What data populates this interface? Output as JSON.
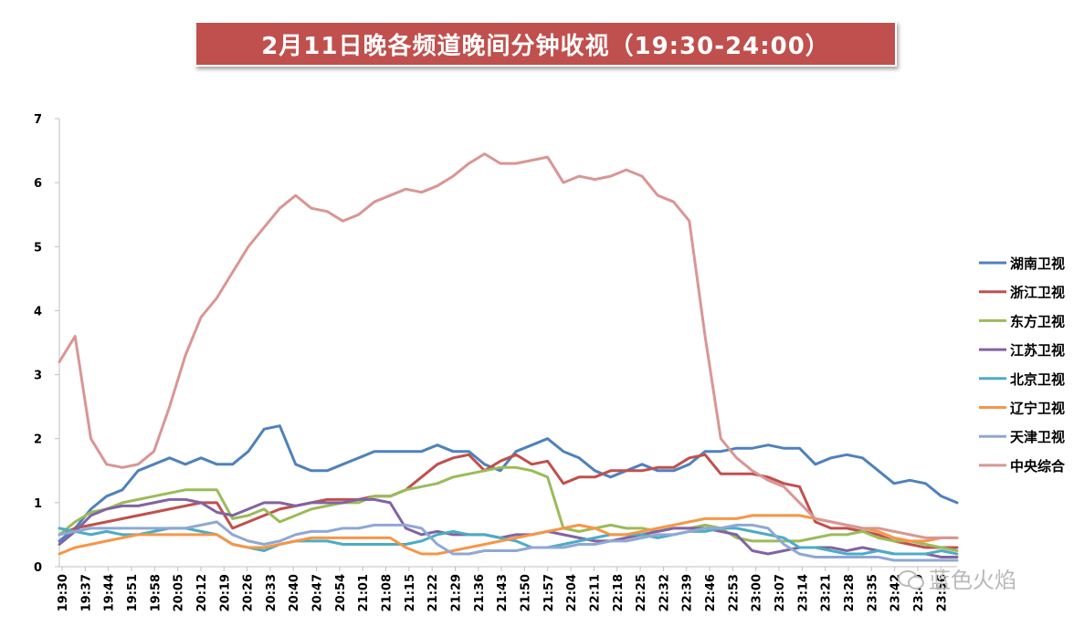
{
  "chart_data": {
    "type": "line",
    "title": "2月11日晚各频道晚间分钟收视（19:30-24:00）",
    "xlabel": "",
    "ylabel": "",
    "ylim": [
      0,
      7
    ],
    "yticks": [
      "0",
      "1",
      "2",
      "3",
      "4",
      "5",
      "6",
      "7"
    ],
    "x_tick_labels": [
      "19:30",
      "19:37",
      "19:44",
      "19:51",
      "19:58",
      "20:05",
      "20:12",
      "20:19",
      "20:26",
      "20:33",
      "20:40",
      "20:47",
      "20:54",
      "21:01",
      "21:08",
      "21:15",
      "21:22",
      "21:29",
      "21:36",
      "21:43",
      "21:50",
      "21:57",
      "22:04",
      "22:11",
      "22:18",
      "22:25",
      "22:32",
      "22:39",
      "22:46",
      "22:53",
      "23:00",
      "23:07",
      "23:14",
      "23:21",
      "23:28",
      "23:35",
      "23:42",
      "23:49",
      "23:56"
    ],
    "legend_position": "right",
    "series": [
      {
        "name": "湖南卫视",
        "color": "#4f81bd",
        "values": [
          0.4,
          0.6,
          0.9,
          1.1,
          1.2,
          1.5,
          1.6,
          1.7,
          1.6,
          1.7,
          1.6,
          1.6,
          1.8,
          2.15,
          2.2,
          1.6,
          1.5,
          1.5,
          1.6,
          1.7,
          1.8,
          1.8,
          1.8,
          1.8,
          1.9,
          1.8,
          1.8,
          1.6,
          1.5,
          1.8,
          1.9,
          2.0,
          1.8,
          1.7,
          1.5,
          1.4,
          1.5,
          1.6,
          1.5,
          1.5,
          1.6,
          1.8,
          1.8,
          1.85,
          1.85,
          1.9,
          1.85,
          1.85,
          1.6,
          1.7,
          1.75,
          1.7,
          1.5,
          1.3,
          1.35,
          1.3,
          1.1,
          1.0
        ]
      },
      {
        "name": "浙江卫视",
        "color": "#c0504d",
        "values": [
          0.5,
          0.6,
          0.65,
          0.7,
          0.75,
          0.8,
          0.85,
          0.9,
          0.95,
          1.0,
          1.0,
          0.6,
          0.7,
          0.8,
          0.9,
          0.95,
          1.0,
          1.05,
          1.05,
          1.05,
          1.1,
          1.1,
          1.2,
          1.4,
          1.6,
          1.7,
          1.75,
          1.5,
          1.65,
          1.75,
          1.6,
          1.65,
          1.3,
          1.4,
          1.4,
          1.5,
          1.5,
          1.5,
          1.55,
          1.55,
          1.7,
          1.75,
          1.45,
          1.45,
          1.45,
          1.4,
          1.3,
          1.25,
          0.7,
          0.6,
          0.6,
          0.55,
          0.5,
          0.4,
          0.35,
          0.3,
          0.3,
          0.3
        ]
      },
      {
        "name": "东方卫视",
        "color": "#9bbb59",
        "values": [
          0.5,
          0.7,
          0.85,
          0.9,
          1.0,
          1.05,
          1.1,
          1.15,
          1.2,
          1.2,
          1.2,
          0.75,
          0.8,
          0.9,
          0.7,
          0.8,
          0.9,
          0.95,
          1.0,
          1.0,
          1.1,
          1.1,
          1.2,
          1.25,
          1.3,
          1.4,
          1.45,
          1.5,
          1.55,
          1.55,
          1.5,
          1.4,
          0.6,
          0.55,
          0.6,
          0.65,
          0.6,
          0.6,
          0.55,
          0.6,
          0.6,
          0.65,
          0.6,
          0.45,
          0.4,
          0.4,
          0.4,
          0.4,
          0.45,
          0.5,
          0.5,
          0.55,
          0.45,
          0.4,
          0.4,
          0.35,
          0.3,
          0.25
        ]
      },
      {
        "name": "江苏卫视",
        "color": "#8064a2",
        "values": [
          0.35,
          0.55,
          0.8,
          0.9,
          0.95,
          0.95,
          1.0,
          1.05,
          1.05,
          1.0,
          0.85,
          0.8,
          0.9,
          1.0,
          1.0,
          0.95,
          1.0,
          1.0,
          1.0,
          1.05,
          1.05,
          1.0,
          0.6,
          0.5,
          0.55,
          0.5,
          0.5,
          0.5,
          0.45,
          0.5,
          0.5,
          0.55,
          0.5,
          0.45,
          0.4,
          0.4,
          0.45,
          0.5,
          0.55,
          0.6,
          0.6,
          0.6,
          0.55,
          0.5,
          0.25,
          0.2,
          0.25,
          0.3,
          0.3,
          0.3,
          0.25,
          0.3,
          0.25,
          0.2,
          0.2,
          0.2,
          0.15,
          0.15
        ]
      },
      {
        "name": "北京卫视",
        "color": "#4bacc6",
        "values": [
          0.6,
          0.55,
          0.5,
          0.55,
          0.5,
          0.5,
          0.55,
          0.6,
          0.6,
          0.55,
          0.5,
          0.35,
          0.3,
          0.25,
          0.35,
          0.4,
          0.4,
          0.4,
          0.35,
          0.35,
          0.35,
          0.35,
          0.35,
          0.4,
          0.5,
          0.55,
          0.5,
          0.5,
          0.45,
          0.4,
          0.3,
          0.3,
          0.35,
          0.4,
          0.45,
          0.5,
          0.5,
          0.5,
          0.45,
          0.5,
          0.55,
          0.55,
          0.6,
          0.6,
          0.55,
          0.5,
          0.45,
          0.3,
          0.3,
          0.25,
          0.2,
          0.2,
          0.25,
          0.2,
          0.2,
          0.2,
          0.25,
          0.2
        ]
      },
      {
        "name": "辽宁卫视",
        "color": "#f79646",
        "values": [
          0.2,
          0.3,
          0.35,
          0.4,
          0.45,
          0.5,
          0.5,
          0.5,
          0.5,
          0.5,
          0.5,
          0.35,
          0.3,
          0.3,
          0.35,
          0.4,
          0.45,
          0.45,
          0.45,
          0.45,
          0.45,
          0.45,
          0.3,
          0.2,
          0.2,
          0.25,
          0.3,
          0.35,
          0.4,
          0.45,
          0.5,
          0.55,
          0.6,
          0.65,
          0.6,
          0.5,
          0.5,
          0.55,
          0.6,
          0.65,
          0.7,
          0.75,
          0.75,
          0.75,
          0.8,
          0.8,
          0.8,
          0.8,
          0.75,
          0.7,
          0.65,
          0.6,
          0.55,
          0.45,
          0.4,
          0.4,
          0.45,
          0.45
        ]
      },
      {
        "name": "天津卫视",
        "color": "#8fa8d4",
        "values": [
          0.5,
          0.55,
          0.6,
          0.6,
          0.6,
          0.6,
          0.6,
          0.6,
          0.6,
          0.65,
          0.7,
          0.5,
          0.4,
          0.35,
          0.4,
          0.5,
          0.55,
          0.55,
          0.6,
          0.6,
          0.65,
          0.65,
          0.65,
          0.6,
          0.35,
          0.2,
          0.2,
          0.25,
          0.25,
          0.25,
          0.3,
          0.3,
          0.3,
          0.35,
          0.35,
          0.4,
          0.4,
          0.45,
          0.5,
          0.5,
          0.55,
          0.6,
          0.6,
          0.65,
          0.65,
          0.6,
          0.35,
          0.2,
          0.15,
          0.15,
          0.15,
          0.15,
          0.15,
          0.1,
          0.1,
          0.1,
          0.1,
          0.1
        ]
      },
      {
        "name": "中央综合",
        "color": "#d99694",
        "values": [
          3.2,
          3.6,
          2.0,
          1.6,
          1.55,
          1.6,
          1.8,
          2.5,
          3.3,
          3.9,
          4.2,
          4.6,
          5.0,
          5.3,
          5.6,
          5.8,
          5.6,
          5.55,
          5.4,
          5.5,
          5.7,
          5.8,
          5.9,
          5.85,
          5.95,
          6.1,
          6.3,
          6.45,
          6.3,
          6.3,
          6.35,
          6.4,
          6.0,
          6.1,
          6.05,
          6.1,
          6.2,
          6.1,
          5.8,
          5.7,
          5.4,
          3.6,
          2.0,
          1.7,
          1.5,
          1.35,
          1.25,
          1.0,
          0.75,
          0.7,
          0.65,
          0.6,
          0.6,
          0.55,
          0.5,
          0.45,
          0.45,
          0.45
        ]
      }
    ]
  },
  "watermark": "蓝色火焰"
}
